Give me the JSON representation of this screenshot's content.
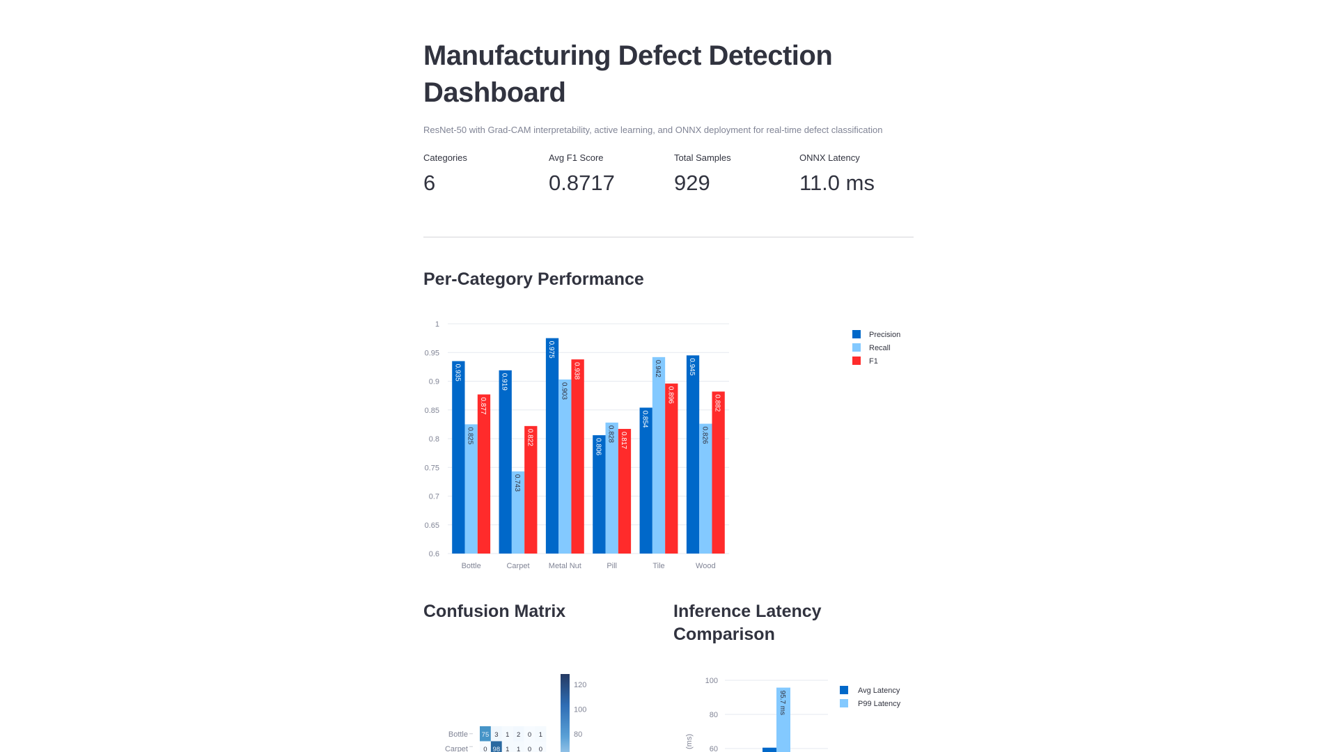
{
  "header": {
    "title": "Manufacturing Defect Detection Dashboard",
    "subtitle": "ResNet-50 with Grad-CAM interpretability, active learning, and ONNX deployment for real-time defect classification"
  },
  "metrics": [
    {
      "label": "Categories",
      "value": "6"
    },
    {
      "label": "Avg F1 Score",
      "value": "0.8717"
    },
    {
      "label": "Total Samples",
      "value": "929"
    },
    {
      "label": "ONNX Latency",
      "value": "11.0 ms"
    }
  ],
  "sections": {
    "performance": "Per-Category Performance",
    "confusion": "Confusion Matrix",
    "latency": "Inference Latency Comparison"
  },
  "colors": {
    "precision": "#0068c9",
    "recall": "#83c9ff",
    "f1": "#ff2b2b",
    "text": "#31333f"
  },
  "chart_data": [
    {
      "type": "bar",
      "categories": [
        "Bottle",
        "Carpet",
        "Metal Nut",
        "Pill",
        "Tile",
        "Wood"
      ],
      "series": [
        {
          "name": "Precision",
          "values": [
            0.935,
            0.919,
            0.975,
            0.806,
            0.854,
            0.945
          ]
        },
        {
          "name": "Recall",
          "values": [
            0.825,
            0.743,
            0.903,
            0.828,
            0.942,
            0.826
          ]
        },
        {
          "name": "F1",
          "values": [
            0.877,
            0.822,
            0.938,
            0.817,
            0.896,
            0.882
          ]
        }
      ],
      "ylim": [
        0.6,
        1.0
      ],
      "yticks": [
        "0.6",
        "0.65",
        "0.7",
        "0.75",
        "0.8",
        "0.85",
        "0.9",
        "0.95",
        "1"
      ],
      "grid": true,
      "legend": "top-right"
    },
    {
      "type": "heatmap",
      "rows": [
        "Bottle",
        "Carpet"
      ],
      "values": [
        [
          75,
          3,
          1,
          2,
          0,
          1
        ],
        [
          0,
          98,
          1,
          1,
          0,
          0
        ]
      ],
      "colorbar_ticks": [
        "80",
        "100",
        "120"
      ],
      "colorscale": "Blues"
    },
    {
      "type": "bar",
      "series": [
        {
          "name": "Avg Latency",
          "values": [
            60.5
          ]
        },
        {
          "name": "P99 Latency",
          "values": [
            95.7
          ],
          "labels": [
            "95.7 ms"
          ]
        }
      ],
      "ylabel": "(ms)",
      "yticks": [
        "60",
        "80",
        "100"
      ],
      "grid": true,
      "legend": "top-right"
    }
  ]
}
